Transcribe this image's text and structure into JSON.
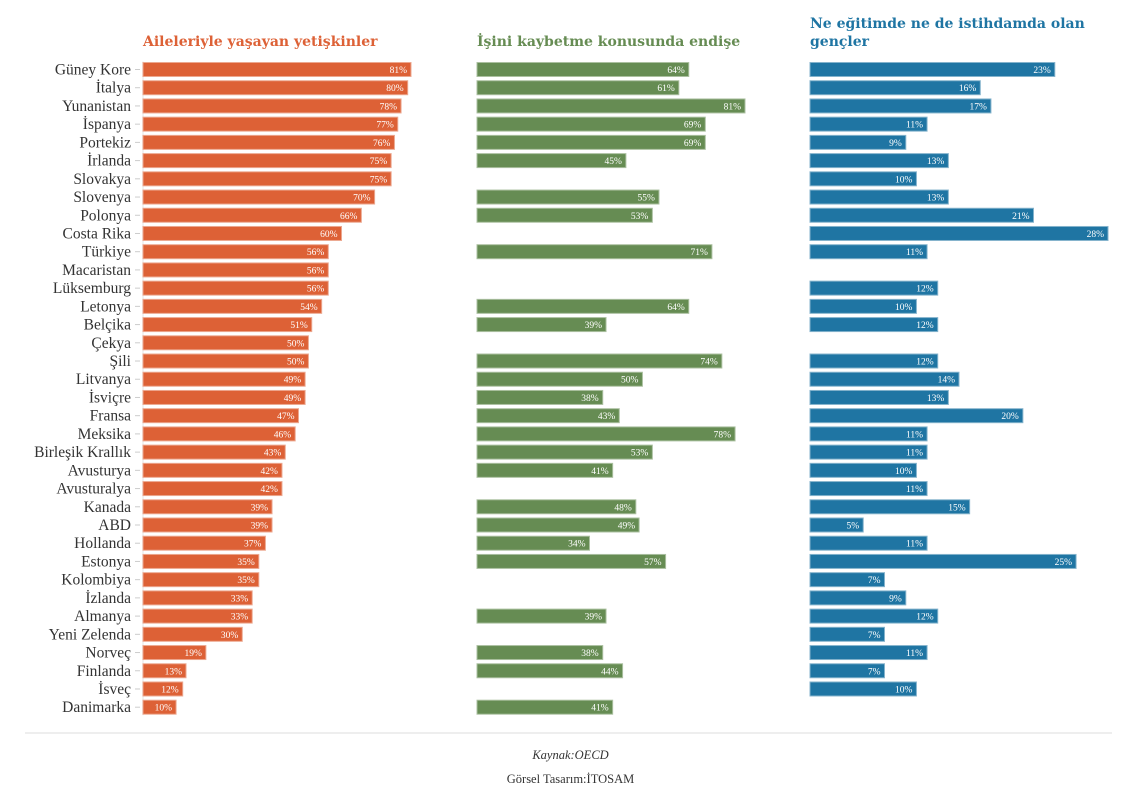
{
  "chart_data": {
    "type": "bar",
    "orientation": "horizontal",
    "categories": [
      "Güney Kore",
      "İtalya",
      "Yunanistan",
      "İspanya",
      "Portekiz",
      "İrlanda",
      "Slovakya",
      "Slovenya",
      "Polonya",
      "Costa Rika",
      "Türkiye",
      "Macaristan",
      "Lüksemburg",
      "Letonya",
      "Belçika",
      "Çekya",
      "Şili",
      "Litvanya",
      "İsviçre",
      "Fransa",
      "Meksika",
      "Birleşik Krallık",
      "Avusturya",
      "Avusturalya",
      "Kanada",
      "ABD",
      "Hollanda",
      "Estonya",
      "Kolombiya",
      "İzlanda",
      "Almanya",
      "Yeni Zelenda",
      "Norveç",
      "Finlanda",
      "İsveç",
      "Danimarka"
    ],
    "series": [
      {
        "name": "Aileleriyle yaşayan yetişkinler",
        "title_lines": [
          "Aileleriyle yaşayan yetişkinler"
        ],
        "color": "#dd6136",
        "unit": "%",
        "values": [
          81,
          80,
          78,
          77,
          76,
          75,
          75,
          70,
          66,
          60,
          56,
          56,
          56,
          54,
          51,
          50,
          50,
          49,
          49,
          47,
          46,
          43,
          42,
          42,
          39,
          39,
          37,
          35,
          35,
          33,
          33,
          30,
          19,
          13,
          12,
          10
        ]
      },
      {
        "name": "İşini kaybetme konusunda endişe",
        "title_lines": [
          "İşini kaybetme konusunda endişe"
        ],
        "color": "#668c53",
        "unit": "%",
        "values": [
          64,
          61,
          81,
          69,
          69,
          45,
          null,
          55,
          53,
          null,
          71,
          null,
          null,
          64,
          39,
          null,
          74,
          50,
          38,
          43,
          78,
          53,
          41,
          null,
          48,
          49,
          34,
          57,
          null,
          null,
          39,
          null,
          38,
          44,
          null,
          41
        ]
      },
      {
        "name": "Ne eğitimde ne de istihdamda olan gençler",
        "title_lines": [
          "Ne eğitimde ne de istihdamda olan",
          "gençler"
        ],
        "color": "#1f75a3",
        "unit": "%",
        "values": [
          23,
          16,
          17,
          11,
          9,
          13,
          10,
          13,
          21,
          28,
          11,
          null,
          12,
          10,
          12,
          null,
          12,
          14,
          13,
          20,
          11,
          11,
          10,
          11,
          15,
          5,
          11,
          25,
          7,
          9,
          12,
          7,
          11,
          7,
          10,
          null
        ]
      }
    ],
    "xlim_per_panel": [
      [
        0,
        81
      ],
      [
        0,
        81
      ],
      [
        0,
        28
      ]
    ],
    "grid": false,
    "legend": "none"
  },
  "footer": {
    "source": "Kaynak:OECD",
    "credit": "Görsel Tasarım:İTOSAM"
  }
}
